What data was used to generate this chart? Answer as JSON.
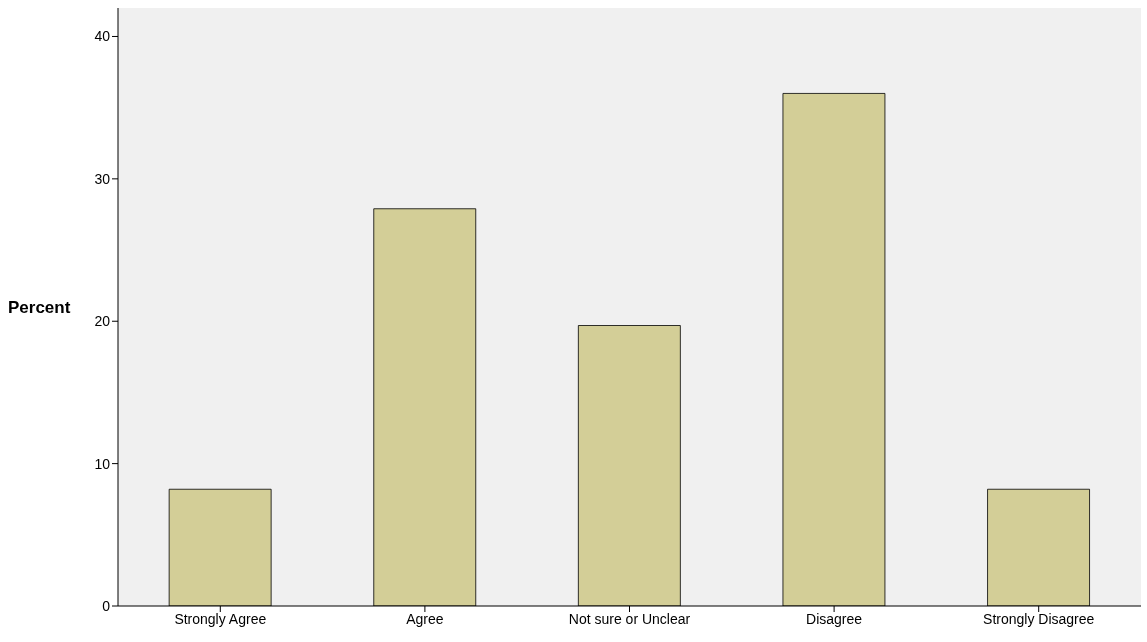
{
  "chart_data": {
    "type": "bar",
    "ylabel": "Percent",
    "categories": [
      "Strongly  Agree",
      "Agree",
      "Not sure or Unclear",
      "Disagree",
      "Strongly Disagree"
    ],
    "values": [
      8.2,
      27.9,
      19.7,
      36.0,
      8.2
    ],
    "color": "#d3ce97",
    "ylim": [
      0,
      42
    ],
    "yticks": [
      0,
      10,
      20,
      30,
      40
    ],
    "grid": false
  }
}
